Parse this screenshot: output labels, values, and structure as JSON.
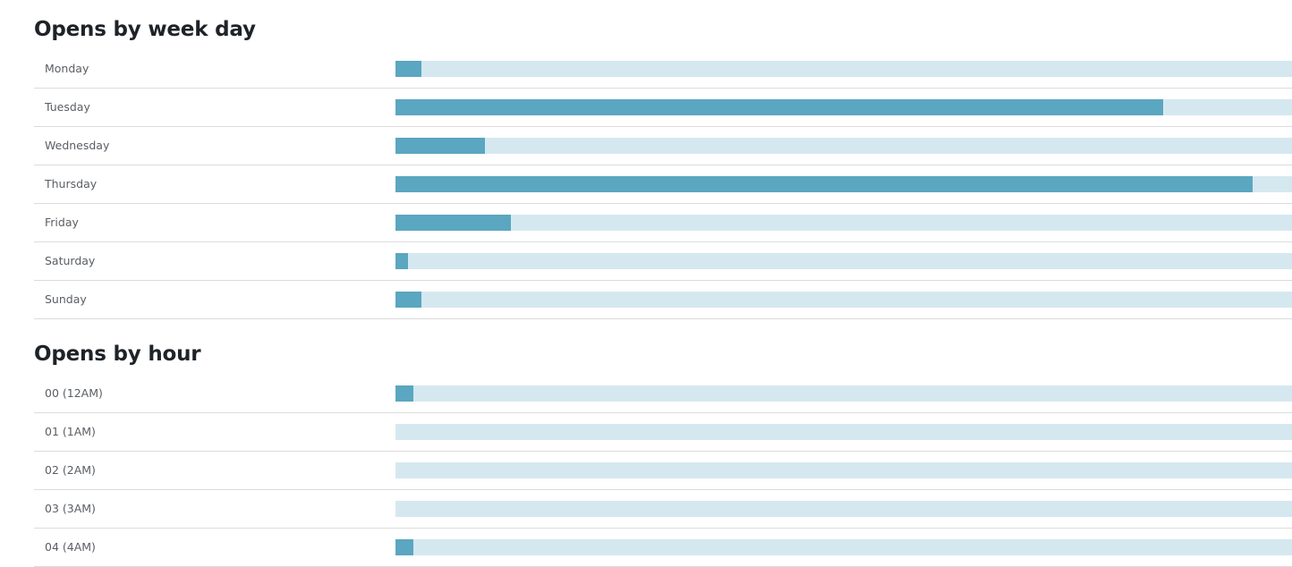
{
  "colors": {
    "bar_fill": "#5ba6c0",
    "bar_track": "#d5e8f0",
    "divider": "#dcdcdc"
  },
  "weekday": {
    "title": "Opens by week day"
  },
  "hour": {
    "title": "Opens by hour"
  },
  "chart_data": [
    {
      "type": "bar",
      "orientation": "horizontal",
      "title": "Opens by week day",
      "categories": [
        "Monday",
        "Tuesday",
        "Wednesday",
        "Thursday",
        "Friday",
        "Saturday",
        "Sunday"
      ],
      "values": [
        0.029,
        0.856,
        0.1,
        0.956,
        0.129,
        0.014,
        0.029
      ],
      "value_unit": "fraction of bar track",
      "xlim": [
        0,
        1
      ],
      "grid": false,
      "legend": "none"
    },
    {
      "type": "bar",
      "orientation": "horizontal",
      "title": "Opens by hour",
      "categories": [
        "00 (12AM)",
        "01 (1AM)",
        "02 (2AM)",
        "03 (3AM)",
        "04 (4AM)"
      ],
      "values": [
        0.02,
        0.0,
        0.0,
        0.0,
        0.02
      ],
      "value_unit": "fraction of bar track",
      "xlim": [
        0,
        1
      ],
      "grid": false,
      "legend": "none"
    }
  ]
}
